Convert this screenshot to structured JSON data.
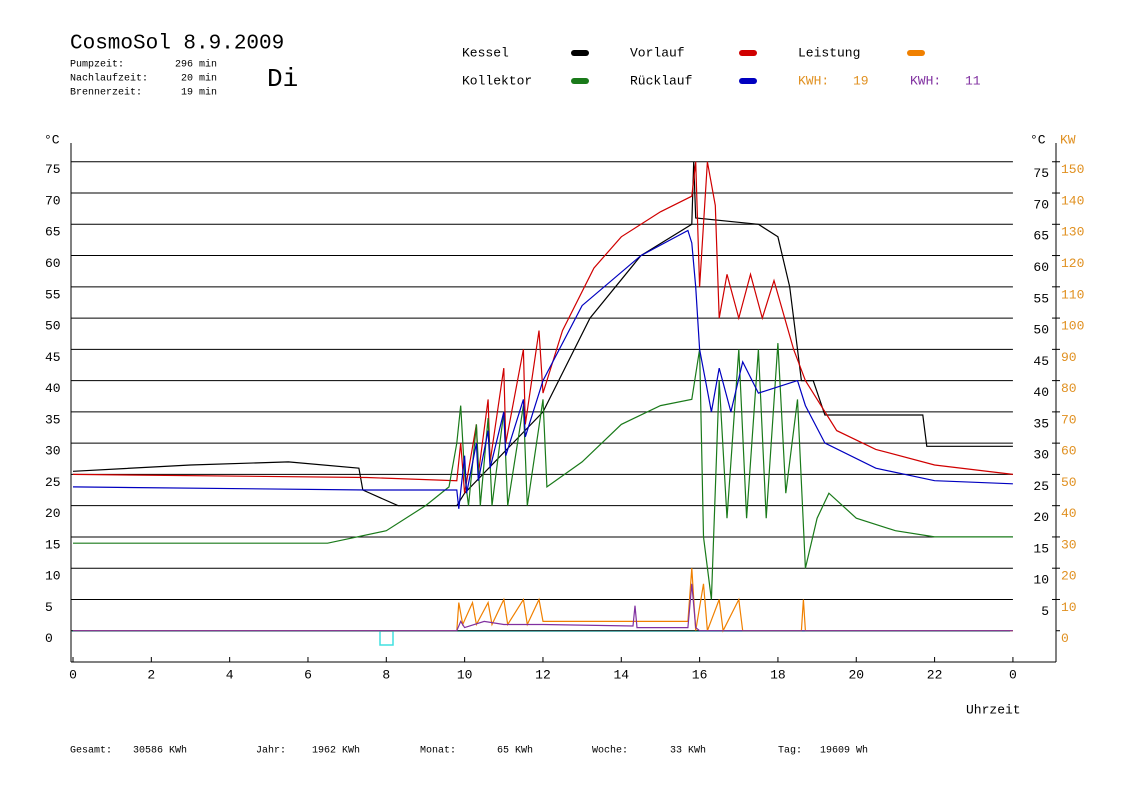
{
  "chart_data": {
    "type": "line",
    "title": "CosmoSol 8.9.2009",
    "day": "Di",
    "info": [
      {
        "label": "Pumpzeit:",
        "value": "296 min"
      },
      {
        "label": "Nachlaufzeit:",
        "value": "20 min"
      },
      {
        "label": "Brennerzeit:",
        "value": "19 min"
      }
    ],
    "kwh": [
      {
        "label": "KWH:",
        "value": 19,
        "color": "#e09020"
      },
      {
        "label": "KWH:",
        "value": 11,
        "color": "#8030a0"
      }
    ],
    "footer": [
      {
        "label": "Gesamt:",
        "value": "30586 KWh"
      },
      {
        "label": "Jahr:",
        "value": "1962 KWh"
      },
      {
        "label": "Monat:",
        "value": "65 KWh"
      },
      {
        "label": "Woche:",
        "value": "33 KWh"
      },
      {
        "label": "Tag:",
        "value": "19609 Wh"
      }
    ],
    "y_label": "°C",
    "y_right_label": "°C",
    "y2_label": "KW",
    "x_label": "Uhrzeit",
    "xlim": [
      0,
      25.1
    ],
    "xticks": [
      0,
      2,
      4,
      6,
      8,
      10,
      12,
      14,
      16,
      18,
      20,
      22,
      {
        "value": 24,
        "label": "0"
      }
    ],
    "ylim": [
      -5,
      78
    ],
    "yticks": [
      0,
      5,
      10,
      15,
      20,
      25,
      30,
      35,
      40,
      45,
      50,
      55,
      60,
      65,
      70,
      75
    ],
    "yticks_right": [
      5,
      10,
      15,
      20,
      25,
      30,
      35,
      40,
      45,
      50,
      55,
      60,
      65,
      70,
      75
    ],
    "y2lim": [
      -10,
      156
    ],
    "y2ticks": [
      0,
      10,
      20,
      30,
      40,
      50,
      60,
      70,
      80,
      90,
      100,
      110,
      120,
      130,
      140,
      150
    ],
    "grid": true,
    "series": [
      {
        "name": "Kessel",
        "color": "#000000",
        "x": [
          0,
          3,
          5.5,
          7.3,
          7.4,
          8.3,
          9.8,
          10,
          12,
          13.2,
          14.5,
          15.8,
          15.85,
          15.9,
          17.5,
          18,
          18.3,
          18.6,
          18.9,
          19.2,
          21.7,
          21.8,
          24
        ],
        "values": [
          25.5,
          26.5,
          27,
          26,
          22.5,
          20,
          20,
          22,
          35,
          50,
          60,
          65,
          75,
          66,
          65,
          63,
          55,
          40,
          40,
          34.5,
          34.5,
          29.5,
          29.5
        ]
      },
      {
        "name": "Vorlauf",
        "color": "#d00000",
        "x": [
          0,
          7.5,
          9.8,
          9.9,
          10,
          10.3,
          10.35,
          10.6,
          10.65,
          11,
          11.05,
          11.5,
          11.55,
          11.9,
          12,
          12.5,
          13.3,
          14,
          15,
          15.8,
          15.9,
          16,
          16.2,
          16.4,
          16.5,
          16.7,
          17,
          17.3,
          17.6,
          17.9,
          18.4,
          18.7,
          19.5,
          20.5,
          22,
          24
        ],
        "values": [
          25,
          24.5,
          24,
          30,
          22,
          33,
          25,
          37,
          27,
          42,
          30,
          45,
          33,
          48,
          38,
          48,
          58,
          63,
          67,
          69.5,
          75,
          55,
          75,
          68,
          50,
          57,
          50,
          57,
          50,
          56,
          45,
          40,
          32,
          29,
          26.5,
          25
        ]
      },
      {
        "name": "Leistung",
        "color": "#f08000",
        "axis": "y2",
        "x": [
          0,
          9.8,
          9.85,
          9.95,
          10.2,
          10.3,
          10.6,
          10.7,
          11,
          11.1,
          11.5,
          11.6,
          11.9,
          12,
          14.5,
          15.7,
          15.8,
          15.9,
          16.1,
          16.2,
          16.5,
          16.6,
          17,
          17.1,
          18.6,
          18.65,
          18.7,
          24
        ],
        "values": [
          0,
          0,
          9,
          2,
          9,
          2,
          9,
          2,
          10,
          2,
          10,
          2,
          10,
          3,
          3,
          3,
          20,
          0,
          15,
          0,
          10,
          0,
          10,
          0,
          0,
          10,
          0,
          0
        ]
      },
      {
        "name": "Kollektor",
        "color": "#1a7a1a",
        "x": [
          0,
          2,
          6.5,
          8,
          9,
          9.6,
          9.8,
          9.9,
          10,
          10.1,
          10.3,
          10.4,
          10.6,
          10.7,
          11,
          11.1,
          11.5,
          11.6,
          12,
          12.1,
          13,
          14,
          15,
          15.8,
          16,
          16.1,
          16.3,
          16.5,
          16.7,
          17,
          17.2,
          17.5,
          17.7,
          18,
          18.2,
          18.5,
          18.7,
          19,
          19.3,
          20,
          21,
          22,
          24
        ],
        "values": [
          14,
          14,
          14,
          16,
          20,
          23,
          30,
          36,
          25,
          20,
          33,
          20,
          34,
          20,
          35,
          20,
          36,
          20,
          37,
          23,
          27,
          33,
          36,
          37,
          45,
          15,
          5,
          40,
          18,
          45,
          18,
          45,
          18,
          46,
          22,
          37,
          10,
          18,
          22,
          18,
          16,
          15,
          15
        ]
      },
      {
        "name": "Rücklauf",
        "color": "#0000c0",
        "x": [
          0,
          7.5,
          9.8,
          9.85,
          10,
          10.05,
          10.3,
          10.35,
          10.6,
          10.65,
          11,
          11.05,
          11.5,
          11.55,
          12,
          13,
          14.5,
          15.7,
          15.8,
          15.9,
          16,
          16.3,
          16.5,
          16.8,
          17.1,
          17.5,
          18.5,
          18.7,
          19.2,
          20.5,
          22,
          24
        ],
        "values": [
          23,
          22.5,
          22.5,
          19.5,
          28,
          22,
          30,
          24,
          32,
          26,
          35,
          28,
          37,
          31,
          40,
          52,
          60,
          64,
          62,
          55,
          45,
          35,
          42,
          35,
          43,
          38,
          40,
          36,
          30,
          26,
          24,
          23.5
        ]
      },
      {
        "color": "#8030a0",
        "axis": "y2",
        "x": [
          0,
          9.8,
          9.9,
          10,
          10.5,
          11,
          12,
          14.3,
          14.35,
          14.4,
          15.7,
          15.8,
          15.9,
          16,
          24
        ],
        "values": [
          0,
          0,
          3,
          1,
          3,
          2,
          2,
          1.5,
          8,
          1,
          1,
          15,
          1,
          0,
          0
        ]
      }
    ]
  }
}
